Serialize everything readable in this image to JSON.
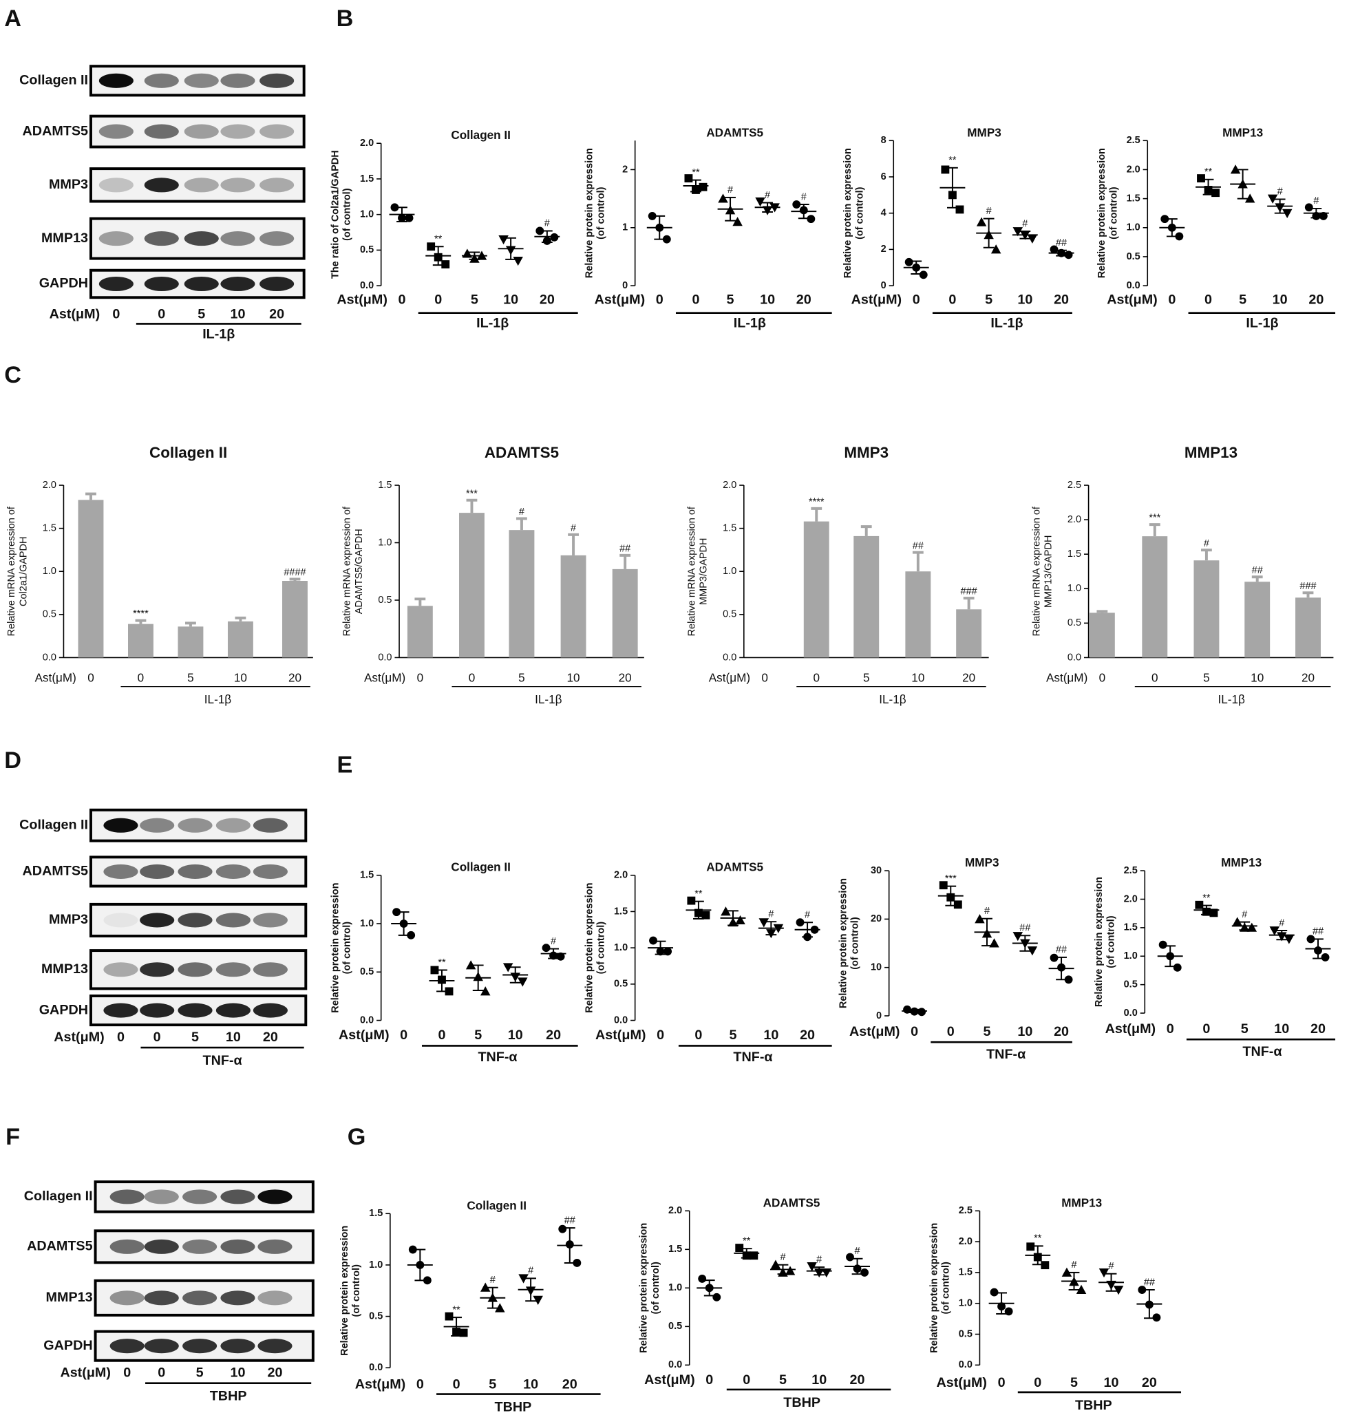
{
  "panel_labels": [
    "A",
    "B",
    "C",
    "D",
    "E",
    "F",
    "G"
  ],
  "blots": [
    {
      "rows": [
        "Collagen II",
        "ADAMTS5",
        "MMP3",
        "MMP13",
        "GAPDH"
      ],
      "x_prefix": "Ast(μM)",
      "lanes": [
        "0",
        "0",
        "5",
        "10",
        "20"
      ],
      "group_label": "IL-1β"
    },
    {
      "rows": [
        "Collagen II",
        "ADAMTS5",
        "MMP3",
        "MMP13",
        "GAPDH"
      ],
      "x_prefix": "Ast(μM)",
      "lanes": [
        "0",
        "0",
        "5",
        "10",
        "20"
      ],
      "group_label": "TNF-α"
    },
    {
      "rows": [
        "Collagen II",
        "ADAMTS5",
        "MMP13",
        "GAPDH"
      ],
      "x_prefix": "Ast(μM)",
      "lanes": [
        "0",
        "0",
        "5",
        "10",
        "20"
      ],
      "group_label": "TBHP"
    }
  ],
  "chart_data": [
    {
      "type": "scatter",
      "title": "Collagen II",
      "y_label": [
        "The ratio of Col2a1/GAPDH",
        "(of control)"
      ],
      "x_prefix": "Ast(μM)",
      "categories": [
        "0",
        "0",
        "5",
        "10",
        "20"
      ],
      "group_label": "IL-1β",
      "color": "#000000",
      "ylim": [
        0,
        2
      ],
      "yticks": [
        {
          "value": 0,
          "label": "0.0"
        },
        {
          "value": 0.5,
          "label": "0.5"
        },
        {
          "value": 1,
          "label": "1.0"
        },
        {
          "value": 1.5,
          "label": "1.5"
        },
        {
          "value": 2,
          "label": "2.0"
        }
      ],
      "values": [
        1.0,
        0.42,
        0.42,
        0.52,
        0.69
      ],
      "errors": [
        0.1,
        0.13,
        0.05,
        0.15,
        0.08
      ],
      "points": [
        [
          1.1,
          0.95,
          0.95
        ],
        [
          0.55,
          0.4,
          0.3
        ],
        [
          0.45,
          0.38,
          0.42
        ],
        [
          0.65,
          0.5,
          0.35
        ],
        [
          0.77,
          0.63,
          0.68
        ]
      ],
      "annotations": [
        null,
        "**",
        null,
        null,
        "#"
      ]
    },
    {
      "type": "scatter",
      "title": "ADAMTS5",
      "y_label": [
        "Relative protein expression",
        "(of control)"
      ],
      "x_prefix": "Ast(μM)",
      "categories": [
        "0",
        "0",
        "5",
        "10",
        "20"
      ],
      "group_label": "IL-1β",
      "color": "#000000",
      "ylim": [
        0,
        2.5
      ],
      "yticks": [
        0,
        1,
        2
      ],
      "values": [
        1.0,
        1.72,
        1.32,
        1.35,
        1.28
      ],
      "errors": [
        0.2,
        0.1,
        0.2,
        0.08,
        0.12
      ],
      "points": [
        [
          1.2,
          1.0,
          0.8
        ],
        [
          1.85,
          1.65,
          1.7
        ],
        [
          1.5,
          1.3,
          1.1
        ],
        [
          1.45,
          1.3,
          1.35
        ],
        [
          1.4,
          1.3,
          1.15
        ]
      ],
      "annotations": [
        null,
        "**",
        "#",
        "#",
        "#"
      ]
    },
    {
      "type": "scatter",
      "title": "MMP3",
      "y_label": [
        "Relative protein expression",
        "(of control)"
      ],
      "x_prefix": "Ast(μM)",
      "categories": [
        "0",
        "0",
        "5",
        "10",
        "20"
      ],
      "group_label": "IL-1β",
      "color": "#000000",
      "ylim": [
        0,
        8
      ],
      "yticks": [
        0,
        2,
        4,
        6,
        8
      ],
      "values": [
        1.0,
        5.4,
        2.9,
        2.8,
        1.8
      ],
      "errors": [
        0.35,
        1.1,
        0.8,
        0.2,
        0.15
      ],
      "points": [
        [
          1.3,
          1.0,
          0.6
        ],
        [
          6.4,
          5.0,
          4.2
        ],
        [
          3.5,
          2.8,
          2.0
        ],
        [
          3.0,
          2.8,
          2.6
        ],
        [
          2.0,
          1.8,
          1.7
        ]
      ],
      "annotations": [
        null,
        "**",
        "#",
        "#",
        "##"
      ]
    },
    {
      "type": "scatter",
      "title": "MMP13",
      "y_label": [
        "Relative protein expression",
        "(of control)"
      ],
      "x_prefix": "Ast(μM)",
      "categories": [
        "0",
        "0",
        "5",
        "10",
        "20"
      ],
      "group_label": "IL-1β",
      "color": "#000000",
      "ylim": [
        0,
        2.5
      ],
      "yticks": [
        {
          "value": 0,
          "label": "0.0"
        },
        {
          "value": 0.5,
          "label": "0.5"
        },
        {
          "value": 1,
          "label": "1.0"
        },
        {
          "value": 1.5,
          "label": "1.5"
        },
        {
          "value": 2,
          "label": "2.0"
        },
        {
          "value": 2.5,
          "label": "2.5"
        }
      ],
      "values": [
        1.0,
        1.7,
        1.75,
        1.37,
        1.25
      ],
      "errors": [
        0.15,
        0.13,
        0.25,
        0.12,
        0.08
      ],
      "points": [
        [
          1.15,
          1.0,
          0.85
        ],
        [
          1.85,
          1.65,
          1.6
        ],
        [
          2.0,
          1.75,
          1.5
        ],
        [
          1.5,
          1.35,
          1.25
        ],
        [
          1.35,
          1.2,
          1.2
        ]
      ],
      "annotations": [
        null,
        "**",
        null,
        "#",
        "#"
      ]
    },
    {
      "type": "bar",
      "title": "Collagen II",
      "y_label": [
        "Relative mRNA expression of",
        "Col2a1/GAPDH"
      ],
      "x_prefix": "Ast(μM)",
      "categories": [
        "0",
        "0",
        "5",
        "10",
        "20"
      ],
      "group_label": "IL-1β",
      "color": "#a6a6a6",
      "ylim": [
        0,
        2
      ],
      "yticks": [
        {
          "value": 0,
          "label": "0.0"
        },
        {
          "value": 0.5,
          "label": "0.5"
        },
        {
          "value": 1,
          "label": "1.0"
        },
        {
          "value": 1.5,
          "label": "1.5"
        },
        {
          "value": 2,
          "label": "2.0"
        }
      ],
      "values": [
        1.83,
        0.39,
        0.36,
        0.42,
        0.89
      ],
      "errors": [
        0.07,
        0.04,
        0.04,
        0.04,
        0.02
      ],
      "annotations": [
        null,
        "****",
        null,
        null,
        "####"
      ]
    },
    {
      "type": "bar",
      "title": "ADAMTS5",
      "y_label": [
        "Relative mRNA expression of",
        "ADAMTS5/GAPDH"
      ],
      "x_prefix": "Ast(μM)",
      "categories": [
        "0",
        "0",
        "5",
        "10",
        "20"
      ],
      "group_label": "IL-1β",
      "color": "#a6a6a6",
      "ylim": [
        0,
        1.5
      ],
      "yticks": [
        {
          "value": 0,
          "label": "0.0"
        },
        {
          "value": 0.5,
          "label": "0.5"
        },
        {
          "value": 1,
          "label": "1.0"
        },
        {
          "value": 1.5,
          "label": "1.5"
        }
      ],
      "values": [
        0.45,
        1.26,
        1.11,
        0.89,
        0.77
      ],
      "errors": [
        0.06,
        0.11,
        0.1,
        0.18,
        0.12
      ],
      "annotations": [
        null,
        "***",
        "#",
        "#",
        "##"
      ]
    },
    {
      "type": "bar",
      "title": "MMP3",
      "y_label": [
        "Relative mRNA expression of",
        "MMP3/GAPDH"
      ],
      "x_prefix": "Ast(μM)",
      "categories": [
        "0",
        "0",
        "5",
        "10",
        "20"
      ],
      "group_label": "IL-1β",
      "color": "#a6a6a6",
      "ylim": [
        0,
        2
      ],
      "yticks": [
        {
          "value": 0,
          "label": "0.0"
        },
        {
          "value": 0.5,
          "label": "0.5"
        },
        {
          "value": 1,
          "label": "1.0"
        },
        {
          "value": 1.5,
          "label": "1.5"
        },
        {
          "value": 2,
          "label": "2.0"
        }
      ],
      "values": [
        null,
        1.58,
        1.41,
        1.0,
        0.56
      ],
      "errors": [
        null,
        0.15,
        0.11,
        0.22,
        0.13
      ],
      "annotations": [
        null,
        "****",
        null,
        "##",
        "###"
      ]
    },
    {
      "type": "bar",
      "title": "MMP13",
      "y_label": [
        "Relative mRNA expression of",
        "MMP13/GAPDH"
      ],
      "x_prefix": "Ast(μM)",
      "categories": [
        "0",
        "0",
        "5",
        "10",
        "20"
      ],
      "group_label": "IL-1β",
      "color": "#a6a6a6",
      "ylim": [
        0,
        2.5
      ],
      "yticks": [
        {
          "value": 0,
          "label": "0.0"
        },
        {
          "value": 0.5,
          "label": "0.5"
        },
        {
          "value": 1,
          "label": "1.0"
        },
        {
          "value": 1.5,
          "label": "1.5"
        },
        {
          "value": 2,
          "label": "2.0"
        },
        {
          "value": 2.5,
          "label": "2.5"
        }
      ],
      "values": [
        0.65,
        1.76,
        1.41,
        1.1,
        0.87
      ],
      "errors": [
        0.02,
        0.17,
        0.15,
        0.07,
        0.07
      ],
      "annotations": [
        null,
        "***",
        "#",
        "##",
        "###"
      ]
    },
    {
      "type": "scatter",
      "title": "Collagen II",
      "y_label": [
        "Relative protein expression",
        "(of control)"
      ],
      "x_prefix": "Ast(μM)",
      "categories": [
        "0",
        "0",
        "5",
        "10",
        "20"
      ],
      "group_label": "TNF-α",
      "color": "#000000",
      "ylim": [
        0,
        1.5
      ],
      "yticks": [
        {
          "value": 0,
          "label": "0.0"
        },
        {
          "value": 0.5,
          "label": "0.5"
        },
        {
          "value": 1,
          "label": "1.0"
        },
        {
          "value": 1.5,
          "label": "1.5"
        }
      ],
      "values": [
        1.0,
        0.41,
        0.44,
        0.47,
        0.69
      ],
      "errors": [
        0.12,
        0.11,
        0.13,
        0.08,
        0.05
      ],
      "points": [
        [
          1.12,
          1.0,
          0.88
        ],
        [
          0.52,
          0.42,
          0.3
        ],
        [
          0.57,
          0.45,
          0.3
        ],
        [
          0.55,
          0.45,
          0.4
        ],
        [
          0.75,
          0.67,
          0.66
        ]
      ],
      "annotations": [
        null,
        "**",
        null,
        null,
        "#"
      ]
    },
    {
      "type": "scatter",
      "title": "ADAMTS5",
      "y_label": [
        "Relative protein expression",
        "(of control)"
      ],
      "x_prefix": "Ast(μM)",
      "categories": [
        "0",
        "0",
        "5",
        "10",
        "20"
      ],
      "group_label": "TNF-α",
      "color": "#000000",
      "ylim": [
        0,
        2
      ],
      "yticks": [
        {
          "value": 0,
          "label": "0.0"
        },
        {
          "value": 0.5,
          "label": "0.5"
        },
        {
          "value": 1,
          "label": "1.0"
        },
        {
          "value": 1.5,
          "label": "1.5"
        },
        {
          "value": 2,
          "label": "2.0"
        }
      ],
      "values": [
        1.0,
        1.52,
        1.41,
        1.27,
        1.25
      ],
      "errors": [
        0.09,
        0.12,
        0.1,
        0.09,
        0.1
      ],
      "points": [
        [
          1.1,
          0.95,
          0.95
        ],
        [
          1.65,
          1.48,
          1.45
        ],
        [
          1.5,
          1.35,
          1.38
        ],
        [
          1.35,
          1.2,
          1.27
        ],
        [
          1.35,
          1.15,
          1.25
        ]
      ],
      "annotations": [
        null,
        "**",
        null,
        "#",
        "#"
      ]
    },
    {
      "type": "scatter",
      "title": "MMP3",
      "y_label": [
        "Relative protein expression",
        "(of control)"
      ],
      "x_prefix": "Ast(μM)",
      "categories": [
        "0",
        "0",
        "5",
        "10",
        "20"
      ],
      "group_label": "TNF-α",
      "color": "#000000",
      "ylim": [
        0,
        30
      ],
      "yticks": [
        0,
        10,
        20,
        30
      ],
      "values": [
        1.0,
        24.8,
        17.3,
        15.0,
        9.8
      ],
      "errors": [
        0.3,
        2.0,
        2.8,
        1.6,
        2.3
      ],
      "points": [
        [
          1.3,
          0.9,
          0.8
        ],
        [
          27,
          24.5,
          23
        ],
        [
          20,
          17,
          15
        ],
        [
          16.5,
          15,
          13.5
        ],
        [
          12,
          10,
          7.5
        ]
      ],
      "annotations": [
        null,
        "***",
        "#",
        "##",
        "##"
      ]
    },
    {
      "type": "scatter",
      "title": "MMP13",
      "y_label": [
        "Relative protein expression",
        "(of control)"
      ],
      "x_prefix": "Ast(μM)",
      "categories": [
        "0",
        "0",
        "5",
        "10",
        "20"
      ],
      "group_label": "TNF-α",
      "color": "#000000",
      "ylim": [
        0,
        2.5
      ],
      "yticks": [
        {
          "value": 0,
          "label": "0.0"
        },
        {
          "value": 0.5,
          "label": "0.5"
        },
        {
          "value": 1,
          "label": "1.0"
        },
        {
          "value": 1.5,
          "label": "1.5"
        },
        {
          "value": 2,
          "label": "2.0"
        },
        {
          "value": 2.5,
          "label": "2.5"
        }
      ],
      "values": [
        1.0,
        1.81,
        1.53,
        1.37,
        1.13
      ],
      "errors": [
        0.18,
        0.08,
        0.07,
        0.08,
        0.17
      ],
      "points": [
        [
          1.2,
          1.0,
          0.8
        ],
        [
          1.9,
          1.78,
          1.76
        ],
        [
          1.6,
          1.5,
          1.5
        ],
        [
          1.45,
          1.35,
          1.3
        ],
        [
          1.3,
          1.1,
          0.98
        ]
      ],
      "annotations": [
        null,
        "**",
        "#",
        "#",
        "##"
      ]
    },
    {
      "type": "scatter",
      "title": "Collagen II",
      "y_label": [
        "Relative protein expression",
        "(of control)"
      ],
      "x_prefix": "Ast(μM)",
      "categories": [
        "0",
        "0",
        "5",
        "10",
        "20"
      ],
      "group_label": "TBHP",
      "color": "#000000",
      "ylim": [
        0,
        1.5
      ],
      "yticks": [
        {
          "value": 0,
          "label": "0.0"
        },
        {
          "value": 0.5,
          "label": "0.5"
        },
        {
          "value": 1,
          "label": "1.0"
        },
        {
          "value": 1.5,
          "label": "1.5"
        }
      ],
      "values": [
        1.0,
        0.4,
        0.68,
        0.76,
        1.19
      ],
      "errors": [
        0.15,
        0.09,
        0.1,
        0.11,
        0.17
      ],
      "points": [
        [
          1.15,
          1.0,
          0.85
        ],
        [
          0.5,
          0.35,
          0.34
        ],
        [
          0.78,
          0.68,
          0.58
        ],
        [
          0.87,
          0.75,
          0.66
        ],
        [
          1.35,
          1.2,
          1.02
        ]
      ],
      "annotations": [
        null,
        "**",
        "#",
        "#",
        "##"
      ]
    },
    {
      "type": "scatter",
      "title": "ADAMTS5",
      "y_label": [
        "Relative protein expression",
        "(of control)"
      ],
      "x_prefix": "Ast(μM)",
      "categories": [
        "0",
        "0",
        "5",
        "10",
        "20"
      ],
      "group_label": "TBHP",
      "color": "#000000",
      "ylim": [
        0,
        2
      ],
      "yticks": [
        {
          "value": 0,
          "label": "0.0"
        },
        {
          "value": 0.5,
          "label": "0.5"
        },
        {
          "value": 1,
          "label": "1.0"
        },
        {
          "value": 1.5,
          "label": "1.5"
        },
        {
          "value": 2,
          "label": "2.0"
        }
      ],
      "values": [
        1.0,
        1.45,
        1.24,
        1.22,
        1.28
      ],
      "errors": [
        0.1,
        0.06,
        0.06,
        0.05,
        0.1
      ],
      "points": [
        [
          1.12,
          1.0,
          0.88
        ],
        [
          1.52,
          1.42,
          1.42
        ],
        [
          1.3,
          1.2,
          1.22
        ],
        [
          1.28,
          1.2,
          1.2
        ],
        [
          1.4,
          1.25,
          1.2
        ]
      ],
      "annotations": [
        null,
        "**",
        "#",
        "#",
        "#"
      ]
    },
    {
      "type": "scatter",
      "title": "MMP13",
      "y_label": [
        "Relative protein expression",
        "(of control)"
      ],
      "x_prefix": "Ast(μM)",
      "categories": [
        "0",
        "0",
        "5",
        "10",
        "20"
      ],
      "group_label": "TBHP",
      "color": "#000000",
      "ylim": [
        0,
        2.5
      ],
      "yticks": [
        {
          "value": 0,
          "label": "0.0"
        },
        {
          "value": 0.5,
          "label": "0.5"
        },
        {
          "value": 1,
          "label": "1.0"
        },
        {
          "value": 1.5,
          "label": "1.5"
        },
        {
          "value": 2,
          "label": "2.0"
        },
        {
          "value": 2.5,
          "label": "2.5"
        }
      ],
      "values": [
        1.0,
        1.78,
        1.36,
        1.34,
        0.99
      ],
      "errors": [
        0.17,
        0.15,
        0.14,
        0.14,
        0.23
      ],
      "points": [
        [
          1.18,
          0.95,
          0.87
        ],
        [
          1.92,
          1.75,
          1.62
        ],
        [
          1.5,
          1.35,
          1.22
        ],
        [
          1.5,
          1.3,
          1.22
        ],
        [
          1.22,
          0.98,
          0.77
        ]
      ],
      "annotations": [
        null,
        "**",
        "#",
        "#",
        "##"
      ]
    }
  ]
}
